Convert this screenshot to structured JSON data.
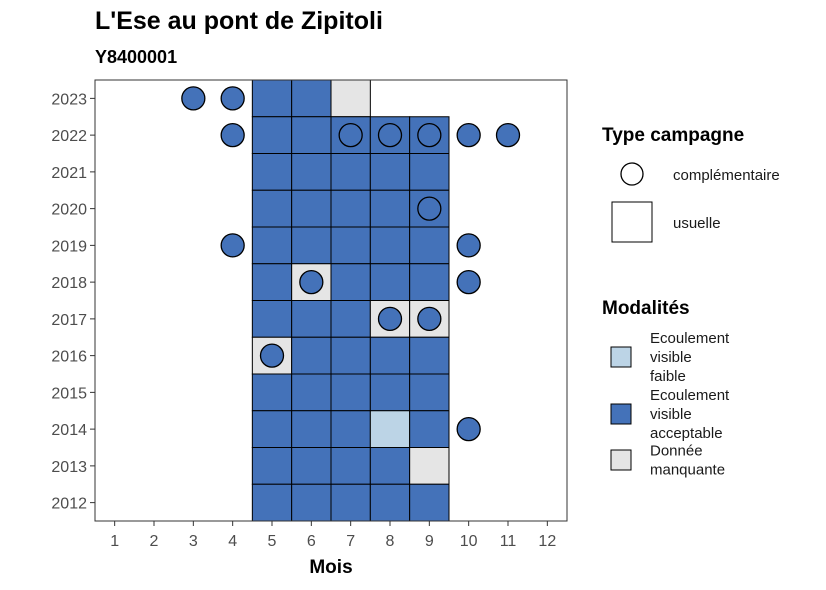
{
  "chart_data": {
    "type": "heatmap",
    "title": "L'Ese au pont de Zipitoli",
    "subtitle": "Y8400001",
    "xlabel": "Mois",
    "ylabel": "",
    "x_ticks": [
      "1",
      "2",
      "3",
      "4",
      "5",
      "6",
      "7",
      "8",
      "9",
      "10",
      "11",
      "12"
    ],
    "y_ticks": [
      "2012",
      "2013",
      "2014",
      "2015",
      "2016",
      "2017",
      "2018",
      "2019",
      "2020",
      "2021",
      "2022",
      "2023"
    ],
    "xlim": [
      0.5,
      12.5
    ],
    "ylim": [
      2011.5,
      2023.5
    ],
    "colors": {
      "faible": "#bcd4e6",
      "acceptable": "#4472b9",
      "manquante": "#e5e5e5",
      "outline": "#000000",
      "tick_text": "#4d4d4d"
    },
    "modalites": [
      {
        "key": "faible",
        "label": "Ecoulement visible faible",
        "lines": [
          "Ecoulement",
          "visible",
          "faible"
        ]
      },
      {
        "key": "acceptable",
        "label": "Ecoulement visible acceptable",
        "lines": [
          "Ecoulement",
          "visible",
          "acceptable"
        ]
      },
      {
        "key": "manquante",
        "label": "Donnée manquante",
        "lines": [
          "Donnée",
          "manquante"
        ]
      }
    ],
    "campagne_types": [
      {
        "key": "complementaire",
        "label": "complémentaire",
        "shape": "circle"
      },
      {
        "key": "usuelle",
        "label": "usuelle",
        "shape": "square"
      }
    ],
    "legend_titles": {
      "campagne": "Type campagne",
      "modalites": "Modalités"
    },
    "usuelle": [
      {
        "year": 2023,
        "month": 5,
        "modalite": "acceptable"
      },
      {
        "year": 2023,
        "month": 6,
        "modalite": "acceptable"
      },
      {
        "year": 2023,
        "month": 7,
        "modalite": "manquante"
      },
      {
        "year": 2022,
        "month": 5,
        "modalite": "acceptable"
      },
      {
        "year": 2022,
        "month": 6,
        "modalite": "acceptable"
      },
      {
        "year": 2022,
        "month": 7,
        "modalite": "acceptable"
      },
      {
        "year": 2022,
        "month": 8,
        "modalite": "acceptable"
      },
      {
        "year": 2022,
        "month": 9,
        "modalite": "acceptable"
      },
      {
        "year": 2021,
        "month": 5,
        "modalite": "acceptable"
      },
      {
        "year": 2021,
        "month": 6,
        "modalite": "acceptable"
      },
      {
        "year": 2021,
        "month": 7,
        "modalite": "acceptable"
      },
      {
        "year": 2021,
        "month": 8,
        "modalite": "acceptable"
      },
      {
        "year": 2021,
        "month": 9,
        "modalite": "acceptable"
      },
      {
        "year": 2020,
        "month": 5,
        "modalite": "acceptable"
      },
      {
        "year": 2020,
        "month": 6,
        "modalite": "acceptable"
      },
      {
        "year": 2020,
        "month": 7,
        "modalite": "acceptable"
      },
      {
        "year": 2020,
        "month": 8,
        "modalite": "acceptable"
      },
      {
        "year": 2020,
        "month": 9,
        "modalite": "acceptable"
      },
      {
        "year": 2019,
        "month": 5,
        "modalite": "acceptable"
      },
      {
        "year": 2019,
        "month": 6,
        "modalite": "acceptable"
      },
      {
        "year": 2019,
        "month": 7,
        "modalite": "acceptable"
      },
      {
        "year": 2019,
        "month": 8,
        "modalite": "acceptable"
      },
      {
        "year": 2019,
        "month": 9,
        "modalite": "acceptable"
      },
      {
        "year": 2018,
        "month": 5,
        "modalite": "acceptable"
      },
      {
        "year": 2018,
        "month": 6,
        "modalite": "manquante"
      },
      {
        "year": 2018,
        "month": 7,
        "modalite": "acceptable"
      },
      {
        "year": 2018,
        "month": 8,
        "modalite": "acceptable"
      },
      {
        "year": 2018,
        "month": 9,
        "modalite": "acceptable"
      },
      {
        "year": 2017,
        "month": 5,
        "modalite": "acceptable"
      },
      {
        "year": 2017,
        "month": 6,
        "modalite": "acceptable"
      },
      {
        "year": 2017,
        "month": 7,
        "modalite": "acceptable"
      },
      {
        "year": 2017,
        "month": 8,
        "modalite": "manquante"
      },
      {
        "year": 2017,
        "month": 9,
        "modalite": "manquante"
      },
      {
        "year": 2016,
        "month": 5,
        "modalite": "manquante"
      },
      {
        "year": 2016,
        "month": 6,
        "modalite": "acceptable"
      },
      {
        "year": 2016,
        "month": 7,
        "modalite": "acceptable"
      },
      {
        "year": 2016,
        "month": 8,
        "modalite": "acceptable"
      },
      {
        "year": 2016,
        "month": 9,
        "modalite": "acceptable"
      },
      {
        "year": 2015,
        "month": 5,
        "modalite": "acceptable"
      },
      {
        "year": 2015,
        "month": 6,
        "modalite": "acceptable"
      },
      {
        "year": 2015,
        "month": 7,
        "modalite": "acceptable"
      },
      {
        "year": 2015,
        "month": 8,
        "modalite": "acceptable"
      },
      {
        "year": 2015,
        "month": 9,
        "modalite": "acceptable"
      },
      {
        "year": 2014,
        "month": 5,
        "modalite": "acceptable"
      },
      {
        "year": 2014,
        "month": 6,
        "modalite": "acceptable"
      },
      {
        "year": 2014,
        "month": 7,
        "modalite": "acceptable"
      },
      {
        "year": 2014,
        "month": 8,
        "modalite": "faible"
      },
      {
        "year": 2014,
        "month": 9,
        "modalite": "acceptable"
      },
      {
        "year": 2013,
        "month": 5,
        "modalite": "acceptable"
      },
      {
        "year": 2013,
        "month": 6,
        "modalite": "acceptable"
      },
      {
        "year": 2013,
        "month": 7,
        "modalite": "acceptable"
      },
      {
        "year": 2013,
        "month": 8,
        "modalite": "acceptable"
      },
      {
        "year": 2013,
        "month": 9,
        "modalite": "manquante"
      },
      {
        "year": 2012,
        "month": 5,
        "modalite": "acceptable"
      },
      {
        "year": 2012,
        "month": 6,
        "modalite": "acceptable"
      },
      {
        "year": 2012,
        "month": 7,
        "modalite": "acceptable"
      },
      {
        "year": 2012,
        "month": 8,
        "modalite": "acceptable"
      },
      {
        "year": 2012,
        "month": 9,
        "modalite": "acceptable"
      }
    ],
    "complementaire": [
      {
        "year": 2023,
        "month": 3,
        "modalite": "acceptable"
      },
      {
        "year": 2023,
        "month": 4,
        "modalite": "acceptable"
      },
      {
        "year": 2022,
        "month": 4,
        "modalite": "acceptable"
      },
      {
        "year": 2022,
        "month": 7,
        "modalite": "acceptable"
      },
      {
        "year": 2022,
        "month": 8,
        "modalite": "acceptable"
      },
      {
        "year": 2022,
        "month": 9,
        "modalite": "acceptable"
      },
      {
        "year": 2022,
        "month": 10,
        "modalite": "acceptable"
      },
      {
        "year": 2022,
        "month": 11,
        "modalite": "acceptable"
      },
      {
        "year": 2020,
        "month": 9,
        "modalite": "acceptable"
      },
      {
        "year": 2019,
        "month": 4,
        "modalite": "acceptable"
      },
      {
        "year": 2019,
        "month": 10,
        "modalite": "acceptable"
      },
      {
        "year": 2018,
        "month": 6,
        "modalite": "acceptable"
      },
      {
        "year": 2018,
        "month": 10,
        "modalite": "acceptable"
      },
      {
        "year": 2017,
        "month": 8,
        "modalite": "acceptable"
      },
      {
        "year": 2017,
        "month": 9,
        "modalite": "acceptable"
      },
      {
        "year": 2016,
        "month": 5,
        "modalite": "acceptable"
      },
      {
        "year": 2014,
        "month": 10,
        "modalite": "acceptable"
      }
    ]
  }
}
